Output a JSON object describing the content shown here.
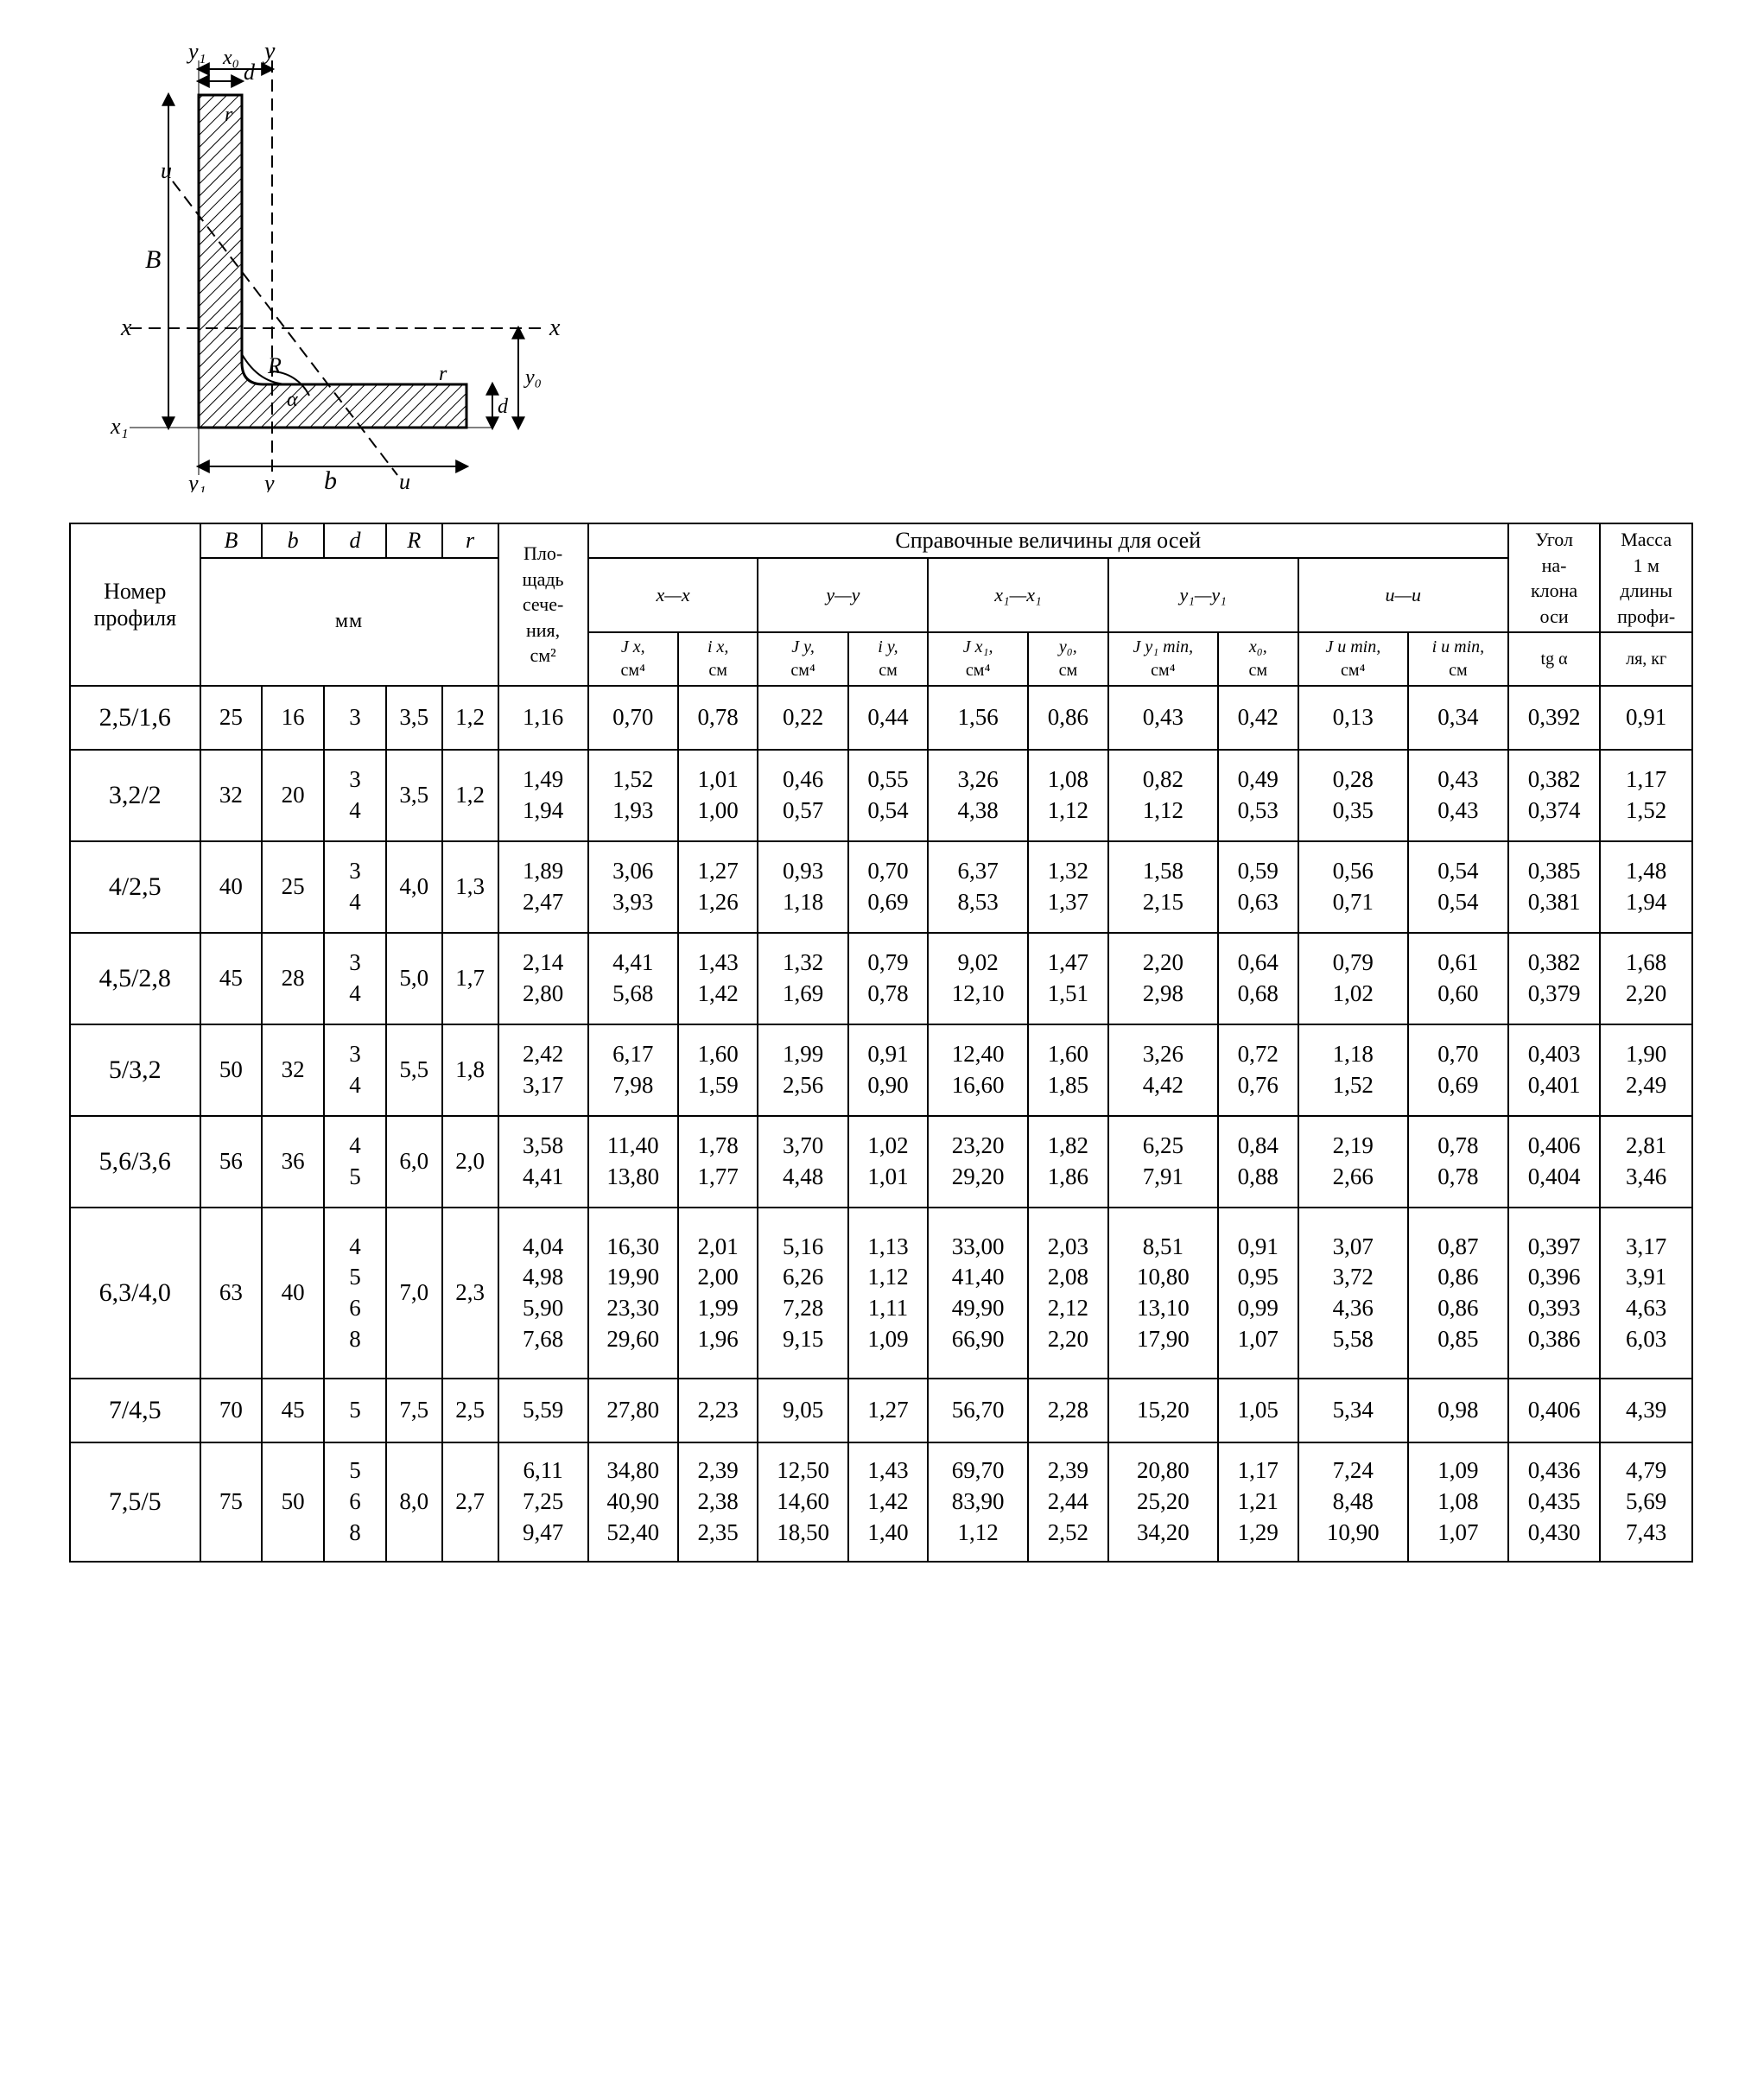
{
  "diagram": {
    "labels": {
      "B": "B",
      "b": "b",
      "d": "d",
      "R": "R",
      "r": "r",
      "x": "x",
      "x1": "x₁",
      "y": "y",
      "y1": "y₁",
      "u": "u",
      "x0": "x₀",
      "y0": "y₀"
    },
    "colors": {
      "stroke": "#000",
      "hatch": "#000",
      "dash": "#000",
      "bg": "#fff"
    }
  },
  "header": {
    "profile": "Номер профиля",
    "B": "B",
    "b": "b",
    "d": "d",
    "R": "R",
    "r": "r",
    "area_top": "Пло-",
    "area_mid": "щадь",
    "area_bot": "сече-",
    "area_bot2": "ния,",
    "area_unit": "см²",
    "ref_title": "Справочные величины для осей",
    "xx": "x—x",
    "yy": "y—y",
    "x1x1": "x₁—x₁",
    "y1y1": "y₁—y₁",
    "uu": "u—u",
    "Jx": "J x,",
    "Jx_u": "см⁴",
    "ix": "i x,",
    "ix_u": "см",
    "Jy": "J y,",
    "Jy_u": "см⁴",
    "iy": "i y,",
    "iy_u": "см",
    "Jx1": "J x₁,",
    "Jx1_u": "см⁴",
    "y0": "y₀,",
    "y0_u": "см",
    "Jy1": "J y₁ min,",
    "Jy1_u": "см⁴",
    "x0": "x₀,",
    "x0_u": "см",
    "Ju": "J u min,",
    "Ju_u": "см⁴",
    "iu": "i u min,",
    "iu_u": "см",
    "angle_top": "Угол",
    "angle_mid": "на-",
    "angle_bot": "клона",
    "angle_bot2": "оси",
    "tg": "tg α",
    "mass_top": "Масса",
    "mass_mid": "1 м",
    "mass_bot": "длины",
    "mass_bot2": "профи-",
    "mass_unit": "ля, кг",
    "mm": "мм"
  },
  "cols": [
    0,
    1,
    2,
    3,
    4,
    5,
    6,
    7,
    8,
    9,
    10,
    11,
    12,
    13,
    14,
    15,
    16,
    17
  ],
  "widths": [
    130,
    62,
    62,
    62,
    56,
    56,
    90,
    90,
    80,
    90,
    80,
    100,
    80,
    110,
    80,
    110,
    100,
    92,
    92
  ],
  "rows": [
    {
      "profile": "2,5/1,6",
      "B": "25",
      "b": "16",
      "d": [
        "3"
      ],
      "R": "3,5",
      "r": "1,2",
      "A": [
        "1,16"
      ],
      "Jx": [
        "0,70"
      ],
      "ix": [
        "0,78"
      ],
      "Jy": [
        "0,22"
      ],
      "iy": [
        "0,44"
      ],
      "Jx1": [
        "1,56"
      ],
      "y0": [
        "0,86"
      ],
      "Jy1": [
        "0,43"
      ],
      "x0": [
        "0,42"
      ],
      "Ju": [
        "0,13"
      ],
      "iu": [
        "0,34"
      ],
      "tg": [
        "0,392"
      ],
      "m": [
        "0,91"
      ],
      "h": "r1"
    },
    {
      "profile": "3,2/2",
      "B": "32",
      "b": "20",
      "d": [
        "3",
        "4"
      ],
      "R": "3,5",
      "r": "1,2",
      "A": [
        "1,49",
        "1,94"
      ],
      "Jx": [
        "1,52",
        "1,93"
      ],
      "ix": [
        "1,01",
        "1,00"
      ],
      "Jy": [
        "0,46",
        "0,57"
      ],
      "iy": [
        "0,55",
        "0,54"
      ],
      "Jx1": [
        "3,26",
        "4,38"
      ],
      "y0": [
        "1,08",
        "1,12"
      ],
      "Jy1": [
        "0,82",
        "1,12"
      ],
      "x0": [
        "0,49",
        "0,53"
      ],
      "Ju": [
        "0,28",
        "0,35"
      ],
      "iu": [
        "0,43",
        "0,43"
      ],
      "tg": [
        "0,382",
        "0,374"
      ],
      "m": [
        "1,17",
        "1,52"
      ],
      "h": "r2"
    },
    {
      "profile": "4/2,5",
      "B": "40",
      "b": "25",
      "d": [
        "3",
        "4"
      ],
      "R": "4,0",
      "r": "1,3",
      "A": [
        "1,89",
        "2,47"
      ],
      "Jx": [
        "3,06",
        "3,93"
      ],
      "ix": [
        "1,27",
        "1,26"
      ],
      "Jy": [
        "0,93",
        "1,18"
      ],
      "iy": [
        "0,70",
        "0,69"
      ],
      "Jx1": [
        "6,37",
        "8,53"
      ],
      "y0": [
        "1,32",
        "1,37"
      ],
      "Jy1": [
        "1,58",
        "2,15"
      ],
      "x0": [
        "0,59",
        "0,63"
      ],
      "Ju": [
        "0,56",
        "0,71"
      ],
      "iu": [
        "0,54",
        "0,54"
      ],
      "tg": [
        "0,385",
        "0,381"
      ],
      "m": [
        "1,48",
        "1,94"
      ],
      "h": "r2"
    },
    {
      "profile": "4,5/2,8",
      "B": "45",
      "b": "28",
      "d": [
        "3",
        "4"
      ],
      "R": "5,0",
      "r": "1,7",
      "A": [
        "2,14",
        "2,80"
      ],
      "Jx": [
        "4,41",
        "5,68"
      ],
      "ix": [
        "1,43",
        "1,42"
      ],
      "Jy": [
        "1,32",
        "1,69"
      ],
      "iy": [
        "0,79",
        "0,78"
      ],
      "Jx1": [
        "9,02",
        "12,10"
      ],
      "y0": [
        "1,47",
        "1,51"
      ],
      "Jy1": [
        "2,20",
        "2,98"
      ],
      "x0": [
        "0,64",
        "0,68"
      ],
      "Ju": [
        "0,79",
        "1,02"
      ],
      "iu": [
        "0,61",
        "0,60"
      ],
      "tg": [
        "0,382",
        "0,379"
      ],
      "m": [
        "1,68",
        "2,20"
      ],
      "h": "r2"
    },
    {
      "profile": "5/3,2",
      "B": "50",
      "b": "32",
      "d": [
        "3",
        "4"
      ],
      "R": "5,5",
      "r": "1,8",
      "A": [
        "2,42",
        "3,17"
      ],
      "Jx": [
        "6,17",
        "7,98"
      ],
      "ix": [
        "1,60",
        "1,59"
      ],
      "Jy": [
        "1,99",
        "2,56"
      ],
      "iy": [
        "0,91",
        "0,90"
      ],
      "Jx1": [
        "12,40",
        "16,60"
      ],
      "y0": [
        "1,60",
        "1,85"
      ],
      "Jy1": [
        "3,26",
        "4,42"
      ],
      "x0": [
        "0,72",
        "0,76"
      ],
      "Ju": [
        "1,18",
        "1,52"
      ],
      "iu": [
        "0,70",
        "0,69"
      ],
      "tg": [
        "0,403",
        "0,401"
      ],
      "m": [
        "1,90",
        "2,49"
      ],
      "h": "r2"
    },
    {
      "profile": "5,6/3,6",
      "B": "56",
      "b": "36",
      "d": [
        "4",
        "5"
      ],
      "R": "6,0",
      "r": "2,0",
      "A": [
        "3,58",
        "4,41"
      ],
      "Jx": [
        "11,40",
        "13,80"
      ],
      "ix": [
        "1,78",
        "1,77"
      ],
      "Jy": [
        "3,70",
        "4,48"
      ],
      "iy": [
        "1,02",
        "1,01"
      ],
      "Jx1": [
        "23,20",
        "29,20"
      ],
      "y0": [
        "1,82",
        "1,86"
      ],
      "Jy1": [
        "6,25",
        "7,91"
      ],
      "x0": [
        "0,84",
        "0,88"
      ],
      "Ju": [
        "2,19",
        "2,66"
      ],
      "iu": [
        "0,78",
        "0,78"
      ],
      "tg": [
        "0,406",
        "0,404"
      ],
      "m": [
        "2,81",
        "3,46"
      ],
      "h": "r2"
    },
    {
      "profile": "6,3/4,0",
      "B": "63",
      "b": "40",
      "d": [
        "4",
        "5",
        "6",
        "8"
      ],
      "R": "7,0",
      "r": "2,3",
      "A": [
        "4,04",
        "4,98",
        "5,90",
        "7,68"
      ],
      "Jx": [
        "16,30",
        "19,90",
        "23,30",
        "29,60"
      ],
      "ix": [
        "2,01",
        "2,00",
        "1,99",
        "1,96"
      ],
      "Jy": [
        "5,16",
        "6,26",
        "7,28",
        "9,15"
      ],
      "iy": [
        "1,13",
        "1,12",
        "1,11",
        "1,09"
      ],
      "Jx1": [
        "33,00",
        "41,40",
        "49,90",
        "66,90"
      ],
      "y0": [
        "2,03",
        "2,08",
        "2,12",
        "2,20"
      ],
      "Jy1": [
        "8,51",
        "10,80",
        "13,10",
        "17,90"
      ],
      "x0": [
        "0,91",
        "0,95",
        "0,99",
        "1,07"
      ],
      "Ju": [
        "3,07",
        "3,72",
        "4,36",
        "5,58"
      ],
      "iu": [
        "0,87",
        "0,86",
        "0,86",
        "0,85"
      ],
      "tg": [
        "0,397",
        "0,396",
        "0,393",
        "0,386"
      ],
      "m": [
        "3,17",
        "3,91",
        "4,63",
        "6,03"
      ],
      "h": "r4"
    },
    {
      "profile": "7/4,5",
      "B": "70",
      "b": "45",
      "d": [
        "5"
      ],
      "R": "7,5",
      "r": "2,5",
      "A": [
        "5,59"
      ],
      "Jx": [
        "27,80"
      ],
      "ix": [
        "2,23"
      ],
      "Jy": [
        "9,05"
      ],
      "iy": [
        "1,27"
      ],
      "Jx1": [
        "56,70"
      ],
      "y0": [
        "2,28"
      ],
      "Jy1": [
        "15,20"
      ],
      "x0": [
        "1,05"
      ],
      "Ju": [
        "5,34"
      ],
      "iu": [
        "0,98"
      ],
      "tg": [
        "0,406"
      ],
      "m": [
        "4,39"
      ],
      "h": "r1"
    },
    {
      "profile": "7,5/5",
      "B": "75",
      "b": "50",
      "d": [
        "5",
        "6",
        "8"
      ],
      "R": "8,0",
      "r": "2,7",
      "A": [
        "6,11",
        "7,25",
        "9,47"
      ],
      "Jx": [
        "34,80",
        "40,90",
        "52,40"
      ],
      "ix": [
        "2,39",
        "2,38",
        "2,35"
      ],
      "Jy": [
        "12,50",
        "14,60",
        "18,50"
      ],
      "iy": [
        "1,43",
        "1,42",
        "1,40"
      ],
      "Jx1": [
        "69,70",
        "83,90",
        "1,12"
      ],
      "y0": [
        "2,39",
        "2,44",
        "2,52"
      ],
      "Jy1": [
        "20,80",
        "25,20",
        "34,20"
      ],
      "x0": [
        "1,17",
        "1,21",
        "1,29"
      ],
      "Ju": [
        "7,24",
        "8,48",
        "10,90"
      ],
      "iu": [
        "1,09",
        "1,08",
        "1,07"
      ],
      "tg": [
        "0,436",
        "0,435",
        "0,430"
      ],
      "m": [
        "4,79",
        "5,69",
        "7,43"
      ],
      "h": "r3"
    }
  ]
}
